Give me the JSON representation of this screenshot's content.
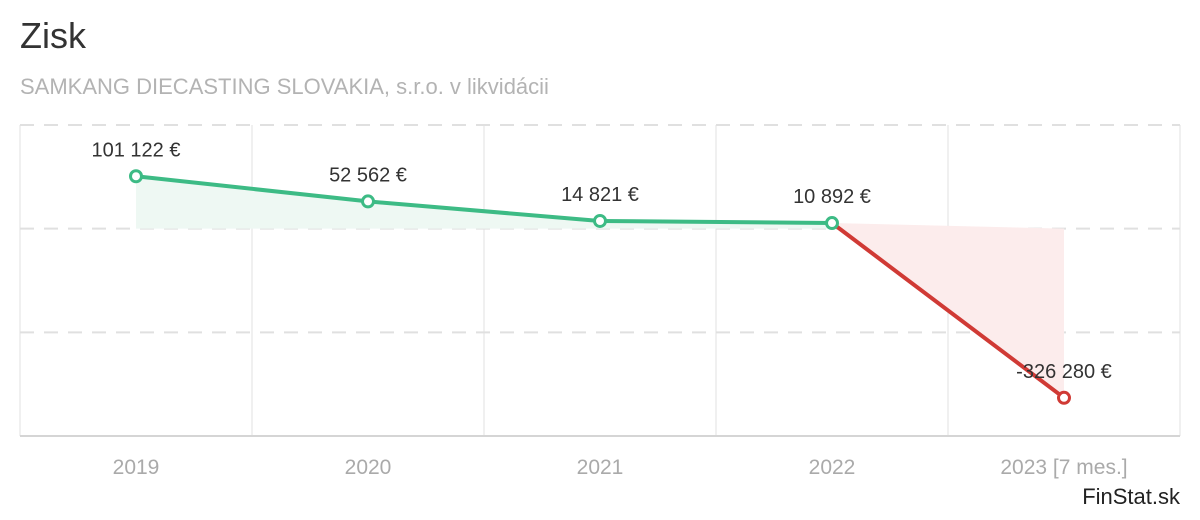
{
  "header": {
    "title": "Zisk",
    "subtitle": "SAMKANG DIECASTING SLOVAKIA, s.r.o. v likvidácii"
  },
  "footer": {
    "brand": "FinStat.sk"
  },
  "colors": {
    "positive": "#3dbb85",
    "negative": "#d03a35",
    "positive_fill": "#eef8f3",
    "negative_fill": "#fcecec",
    "grid": "#e0e0e0",
    "axis_text": "#aaaaaa",
    "value_text": "#333333"
  },
  "chart_data": {
    "type": "line",
    "title": "Zisk",
    "subtitle": "SAMKANG DIECASTING SLOVAKIA, s.r.o. v likvidácii",
    "xlabel": "",
    "ylabel": "",
    "grid": true,
    "legend": "none",
    "ylim": [
      -400000,
      200000
    ],
    "categories": [
      "2019",
      "2020",
      "2021",
      "2022",
      "2023 [7 mes.]"
    ],
    "values": [
      101122,
      52562,
      14821,
      10892,
      -326280
    ],
    "value_labels": [
      "101 122 €",
      "52 562 €",
      "14 821 €",
      "10 892 €",
      "-326 280 €"
    ]
  }
}
